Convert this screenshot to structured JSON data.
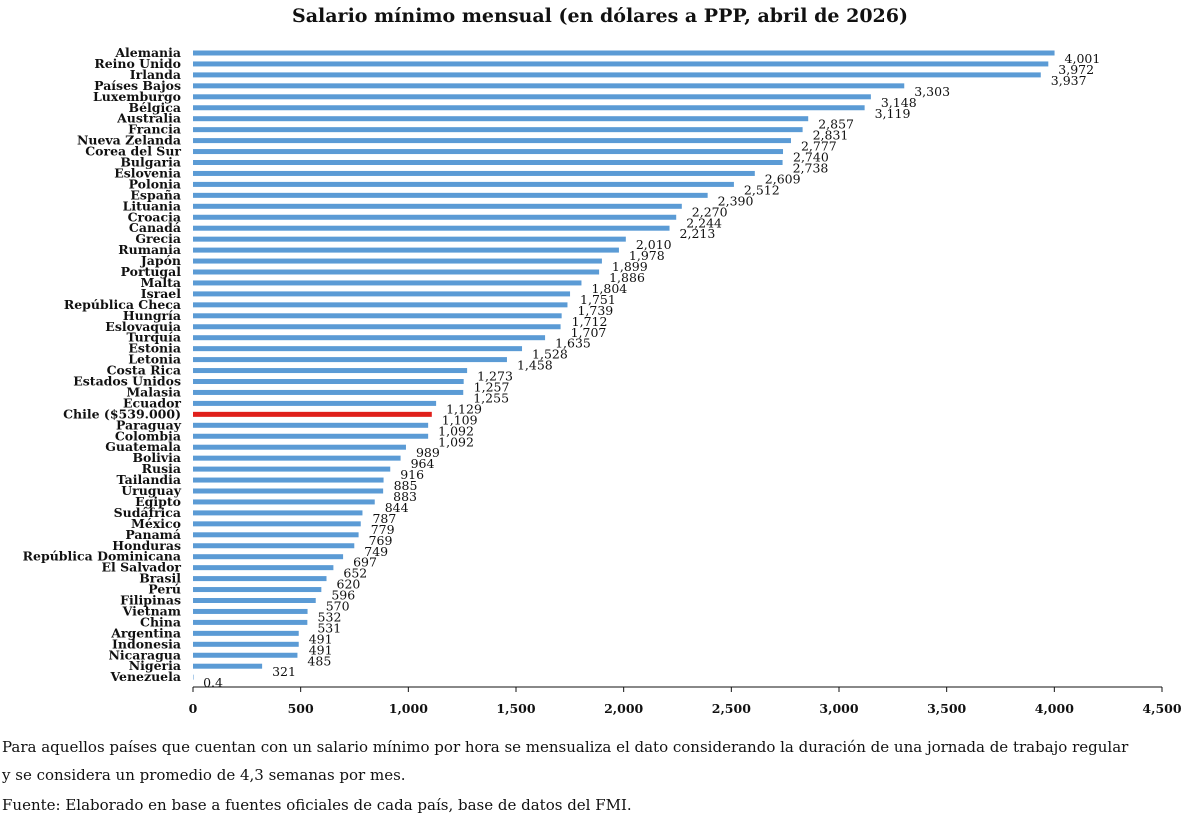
{
  "chart_data": {
    "type": "bar",
    "orientation": "horizontal",
    "title": "Salario mínimo mensual (en dólares a PPP, abril de 2026)",
    "xlabel": "",
    "ylabel": "",
    "xlim": [
      0,
      4500
    ],
    "xticks": [
      0,
      500,
      1000,
      1500,
      2000,
      2500,
      3000,
      3500,
      4000,
      4500
    ],
    "xtick_labels": [
      "0",
      "500",
      "1,000",
      "1,500",
      "2,000",
      "2,500",
      "3,000",
      "3,500",
      "4,000",
      "4,500"
    ],
    "grid": false,
    "legend": "none",
    "bar_color": "#5b9bd5",
    "highlight_color": "#e0201b",
    "highlight_category": "Chile ($539.000)",
    "categories": [
      "Alemania",
      "Reino Unido",
      "Irlanda",
      "Países Bajos",
      "Luxemburgo",
      "Bélgica",
      "Australia",
      "Francia",
      "Nueva Zelanda",
      "Corea del Sur",
      "Bulgaria",
      "Eslovenia",
      "Polonia",
      "España",
      "Lituania",
      "Croacia",
      "Canadá",
      "Grecia",
      "Rumania",
      "Japón",
      "Portugal",
      "Malta",
      "Israel",
      "República Checa",
      "Hungría",
      "Eslovaquia",
      "Turquía",
      "Estonia",
      "Letonia",
      "Costa Rica",
      "Estados Unidos",
      "Malasia",
      "Ecuador",
      "Chile ($539.000)",
      "Paraguay",
      "Colombia",
      "Guatemala",
      "Bolivia",
      "Rusia",
      "Tailandia",
      "Uruguay",
      "Egipto",
      "Sudáfrica",
      "México",
      "Panamá",
      "Honduras",
      "República Dominicana",
      "El Salvador",
      "Brasil",
      "Perú",
      "Filipinas",
      "Vietnam",
      "China",
      "Argentina",
      "Indonesia",
      "Nicaragua",
      "Nigeria",
      "Venezuela"
    ],
    "values": [
      4001,
      3972,
      3937,
      3303,
      3148,
      3119,
      2857,
      2831,
      2777,
      2740,
      2738,
      2609,
      2512,
      2390,
      2270,
      2244,
      2213,
      2010,
      1978,
      1899,
      1886,
      1804,
      1751,
      1739,
      1712,
      1707,
      1635,
      1528,
      1458,
      1273,
      1257,
      1255,
      1129,
      1109,
      1092,
      1092,
      989,
      964,
      916,
      885,
      883,
      844,
      787,
      779,
      769,
      749,
      697,
      652,
      620,
      596,
      570,
      532,
      531,
      491,
      491,
      485,
      321,
      0.4
    ],
    "value_labels": [
      "4,001",
      "3,972",
      "3,937",
      "3,303",
      "3,148",
      "3,119",
      "2,857",
      "2,831",
      "2,777",
      "2,740",
      "2,738",
      "2,609",
      "2,512",
      "2,390",
      "2,270",
      "2,244",
      "2,213",
      "2,010",
      "1,978",
      "1,899",
      "1,886",
      "1,804",
      "1,751",
      "1,739",
      "1,712",
      "1,707",
      "1,635",
      "1,528",
      "1,458",
      "1,273",
      "1,257",
      "1,255",
      "1,129",
      "1,109",
      "1,092",
      "1,092",
      "989",
      "964",
      "916",
      "885",
      "883",
      "844",
      "787",
      "779",
      "769",
      "749",
      "697",
      "652",
      "620",
      "596",
      "570",
      "532",
      "531",
      "491",
      "491",
      "485",
      "321",
      "0.4"
    ]
  },
  "notes": {
    "line1": "Para aquellos países que cuentan con un salario mínimo por hora se mensualiza el dato considerando la duración de una jornada de trabajo regular",
    "line2": "y se considera un promedio de 4,3 semanas por mes.",
    "source": "Fuente: Elaborado en base a fuentes oficiales de cada país, base de datos del FMI."
  }
}
